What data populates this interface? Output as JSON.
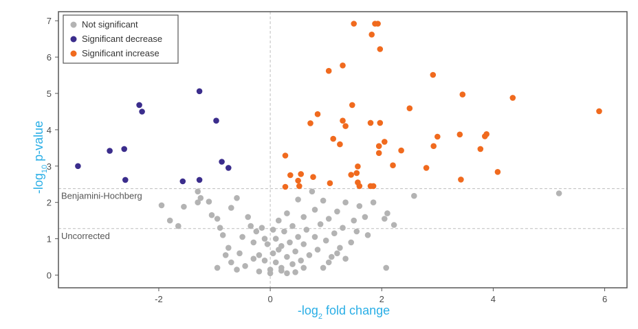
{
  "chart_data": {
    "type": "scatter",
    "title": "",
    "xlabel_prefix": "-log",
    "xlabel_sub": "2",
    "xlabel_suffix": " fold change",
    "ylabel_prefix": "-log",
    "ylabel_sub": "10",
    "ylabel_suffix": " p-value",
    "xlim": [
      -3.8,
      6.4
    ],
    "ylim": [
      -0.35,
      7.25
    ],
    "xticks": [
      -2,
      0,
      2,
      4,
      6
    ],
    "yticks": [
      0,
      1,
      2,
      3,
      4,
      5,
      6,
      7
    ],
    "reference_lines": [
      {
        "name": "benjamini-hochberg",
        "y": 2.38,
        "label": "Benjamini-Hochberg"
      },
      {
        "name": "uncorrected",
        "y": 1.28,
        "label": "Uncorrected"
      }
    ],
    "vertical_reference_x": 0,
    "legend_position": "top-left",
    "colors": {
      "not_significant": "#b3b3b3",
      "decrease": "#3b2d8c",
      "increase": "#f06a1e",
      "axis_title": "#29aee6",
      "frame": "#555555",
      "reference_line": "#bdbdbd"
    },
    "series": [
      {
        "name": "Not significant",
        "color": "#b3b3b3",
        "points": [
          [
            -1.95,
            1.92
          ],
          [
            -1.8,
            1.5
          ],
          [
            -1.65,
            1.35
          ],
          [
            -1.55,
            1.88
          ],
          [
            -1.3,
            2.3
          ],
          [
            -1.25,
            2.12
          ],
          [
            -1.3,
            2.0
          ],
          [
            -1.1,
            2.02
          ],
          [
            -1.05,
            1.65
          ],
          [
            -0.95,
            1.55
          ],
          [
            -0.9,
            1.3
          ],
          [
            -0.85,
            1.1
          ],
          [
            -0.7,
            1.85
          ],
          [
            -0.6,
            2.12
          ],
          [
            -0.75,
            0.75
          ],
          [
            -0.7,
            0.35
          ],
          [
            -0.55,
            0.6
          ],
          [
            -0.5,
            1.05
          ],
          [
            -0.4,
            1.6
          ],
          [
            -0.35,
            1.35
          ],
          [
            -0.3,
            0.9
          ],
          [
            -0.25,
            1.2
          ],
          [
            -0.2,
            0.55
          ],
          [
            -0.15,
            1.3
          ],
          [
            -0.1,
            0.4
          ],
          [
            -0.05,
            0.85
          ],
          [
            0.0,
            0.15
          ],
          [
            0.05,
            0.6
          ],
          [
            0.1,
            1.0
          ],
          [
            0.1,
            0.35
          ],
          [
            0.15,
            1.5
          ],
          [
            0.2,
            0.8
          ],
          [
            0.2,
            0.2
          ],
          [
            0.25,
            1.2
          ],
          [
            0.3,
            0.5
          ],
          [
            0.3,
            1.7
          ],
          [
            0.35,
            0.9
          ],
          [
            0.4,
            0.3
          ],
          [
            0.4,
            1.35
          ],
          [
            0.45,
            0.65
          ],
          [
            0.5,
            1.05
          ],
          [
            0.5,
            2.08
          ],
          [
            0.55,
            0.4
          ],
          [
            0.6,
            1.6
          ],
          [
            0.6,
            0.85
          ],
          [
            0.65,
            1.25
          ],
          [
            0.7,
            0.55
          ],
          [
            0.75,
            2.3
          ],
          [
            0.8,
            1.05
          ],
          [
            0.8,
            1.8
          ],
          [
            0.85,
            0.7
          ],
          [
            0.9,
            1.4
          ],
          [
            0.95,
            2.05
          ],
          [
            1.0,
            0.95
          ],
          [
            1.05,
            1.55
          ],
          [
            1.1,
            0.5
          ],
          [
            1.15,
            1.15
          ],
          [
            1.2,
            1.75
          ],
          [
            1.25,
            0.75
          ],
          [
            1.3,
            1.3
          ],
          [
            1.35,
            2.0
          ],
          [
            1.45,
            0.9
          ],
          [
            1.5,
            1.5
          ],
          [
            1.55,
            1.2
          ],
          [
            1.6,
            1.9
          ],
          [
            1.7,
            1.6
          ],
          [
            1.75,
            1.1
          ],
          [
            1.85,
            2.0
          ],
          [
            -0.2,
            0.1
          ],
          [
            0.0,
            0.05
          ],
          [
            0.2,
            0.12
          ],
          [
            0.45,
            0.08
          ],
          [
            0.6,
            0.2
          ],
          [
            -0.45,
            0.25
          ],
          [
            -0.6,
            0.15
          ],
          [
            0.15,
            0.7
          ],
          [
            -0.1,
            1.0
          ],
          [
            0.05,
            1.25
          ],
          [
            0.3,
            0.05
          ],
          [
            -0.3,
            0.45
          ],
          [
            2.1,
            1.7
          ],
          [
            2.05,
            1.55
          ],
          [
            2.22,
            1.38
          ],
          [
            2.58,
            2.18
          ],
          [
            2.08,
            0.2
          ],
          [
            5.18,
            2.25
          ],
          [
            0.95,
            0.2
          ],
          [
            1.05,
            0.35
          ],
          [
            1.2,
            0.6
          ],
          [
            -0.8,
            0.55
          ],
          [
            -0.95,
            0.2
          ],
          [
            1.35,
            0.45
          ]
        ]
      },
      {
        "name": "Significant decrease",
        "color": "#3b2d8c",
        "points": [
          [
            -3.45,
            3.0
          ],
          [
            -2.88,
            3.42
          ],
          [
            -2.62,
            3.47
          ],
          [
            -2.6,
            2.62
          ],
          [
            -2.35,
            4.68
          ],
          [
            -2.3,
            4.5
          ],
          [
            -1.57,
            2.58
          ],
          [
            -1.27,
            5.06
          ],
          [
            -1.27,
            2.62
          ],
          [
            -0.97,
            4.25
          ],
          [
            -0.87,
            3.12
          ],
          [
            -0.75,
            2.95
          ]
        ]
      },
      {
        "name": "Significant increase",
        "color": "#f06a1e",
        "points": [
          [
            1.5,
            6.92
          ],
          [
            1.88,
            6.92
          ],
          [
            1.93,
            6.92
          ],
          [
            1.82,
            6.62
          ],
          [
            1.97,
            6.22
          ],
          [
            1.05,
            5.62
          ],
          [
            1.3,
            5.77
          ],
          [
            2.92,
            5.51
          ],
          [
            1.47,
            4.68
          ],
          [
            2.5,
            4.59
          ],
          [
            3.45,
            4.97
          ],
          [
            4.35,
            4.88
          ],
          [
            5.9,
            4.51
          ],
          [
            0.85,
            4.43
          ],
          [
            0.72,
            4.18
          ],
          [
            1.3,
            4.25
          ],
          [
            1.35,
            4.1
          ],
          [
            1.8,
            4.19
          ],
          [
            1.97,
            4.19
          ],
          [
            1.13,
            3.75
          ],
          [
            1.25,
            3.6
          ],
          [
            2.05,
            3.67
          ],
          [
            1.95,
            3.55
          ],
          [
            1.95,
            3.36
          ],
          [
            2.35,
            3.43
          ],
          [
            3.0,
            3.81
          ],
          [
            2.93,
            3.55
          ],
          [
            3.4,
            3.87
          ],
          [
            3.88,
            3.88
          ],
          [
            3.85,
            3.82
          ],
          [
            3.77,
            3.47
          ],
          [
            0.27,
            3.29
          ],
          [
            0.36,
            2.75
          ],
          [
            0.55,
            2.78
          ],
          [
            0.77,
            2.7
          ],
          [
            0.27,
            2.43
          ],
          [
            0.5,
            2.6
          ],
          [
            0.52,
            2.45
          ],
          [
            1.07,
            2.53
          ],
          [
            1.45,
            2.76
          ],
          [
            1.57,
            2.99
          ],
          [
            1.6,
            2.45
          ],
          [
            1.55,
            2.81
          ],
          [
            1.57,
            2.55
          ],
          [
            1.8,
            2.45
          ],
          [
            1.85,
            2.45
          ],
          [
            2.2,
            3.02
          ],
          [
            2.8,
            2.95
          ],
          [
            3.42,
            2.63
          ],
          [
            4.08,
            2.84
          ]
        ]
      }
    ]
  }
}
